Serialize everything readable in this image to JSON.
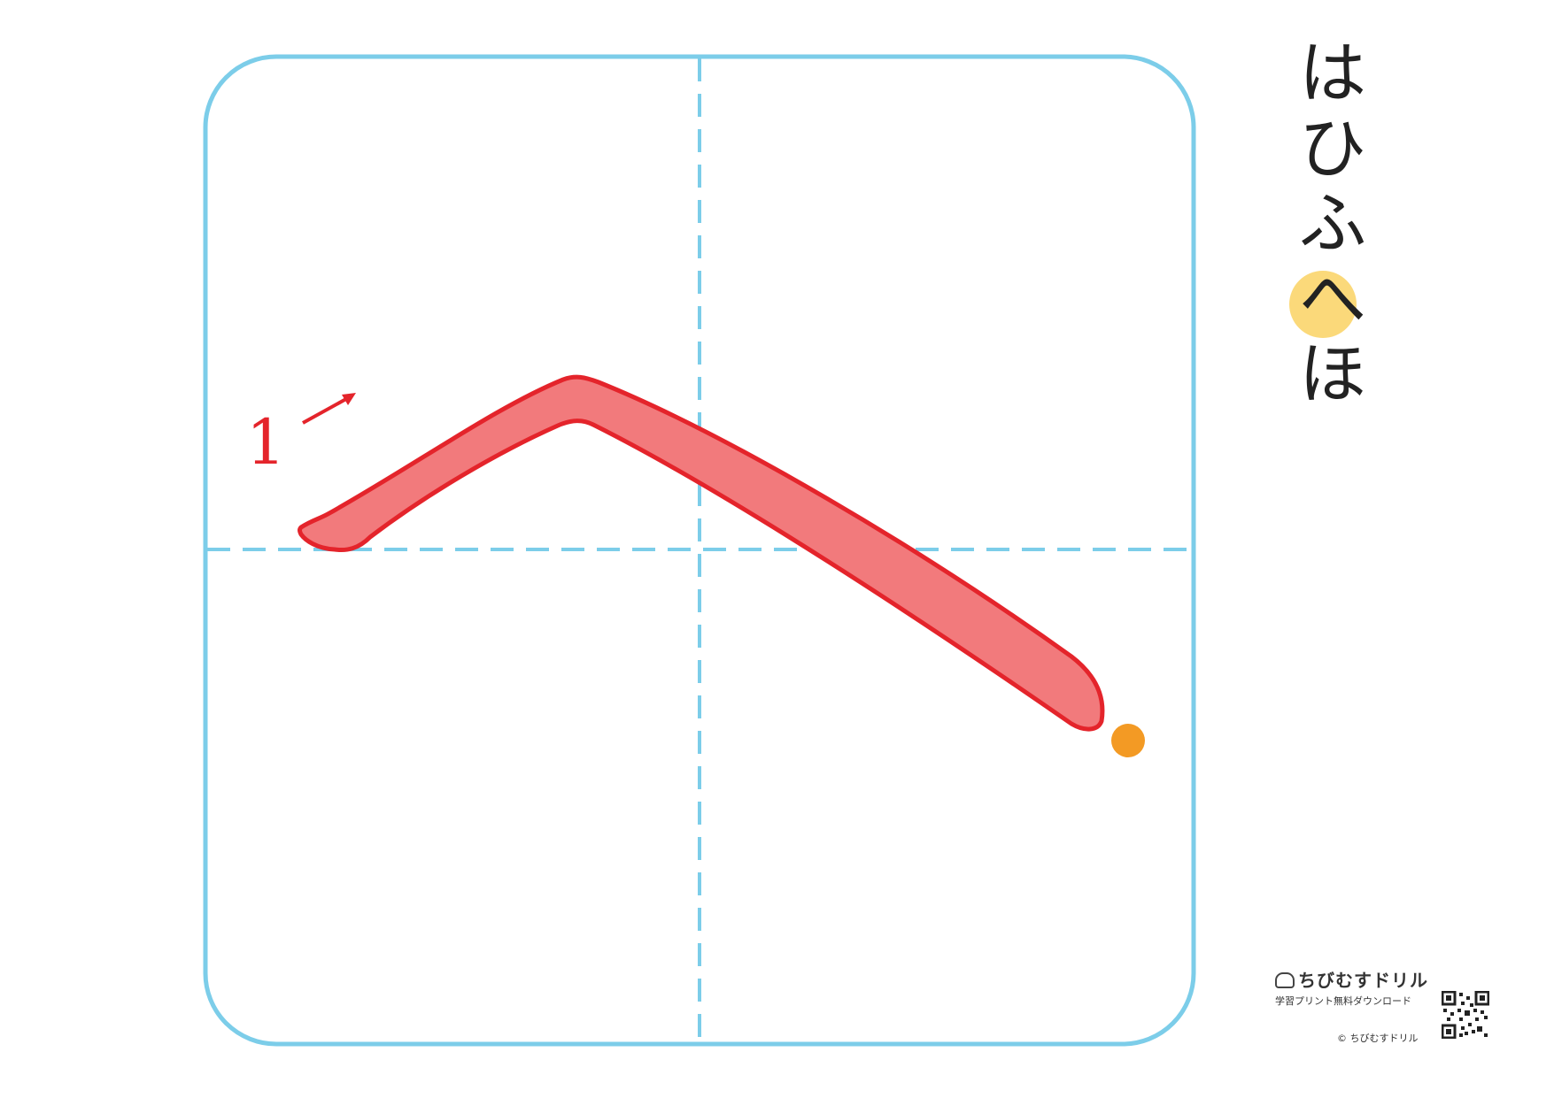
{
  "character": {
    "target": "へ",
    "stroke_numbers": [
      "1"
    ]
  },
  "kana_row": {
    "chars": [
      "は",
      "ひ",
      "ふ",
      "へ",
      "ほ"
    ],
    "highlight_index": 3
  },
  "brand": {
    "name": "ちびむすドリル",
    "tagline": "学習プリント無料ダウンロード",
    "copyright": "© ちびむすドリル"
  },
  "colors": {
    "grid_line": "#7ccde9",
    "stroke_fill": "#f27a7c",
    "stroke_outline": "#e4242b",
    "stroke_number": "#e4242b",
    "end_dot": "#f39a24",
    "highlight": "#fbd97a",
    "text": "#222222"
  },
  "icons": {
    "direction": "arrow-up-right-icon",
    "end_marker": "end-dot-icon",
    "brand_logo": "mascot-icon",
    "qr": "qr-code-icon"
  }
}
